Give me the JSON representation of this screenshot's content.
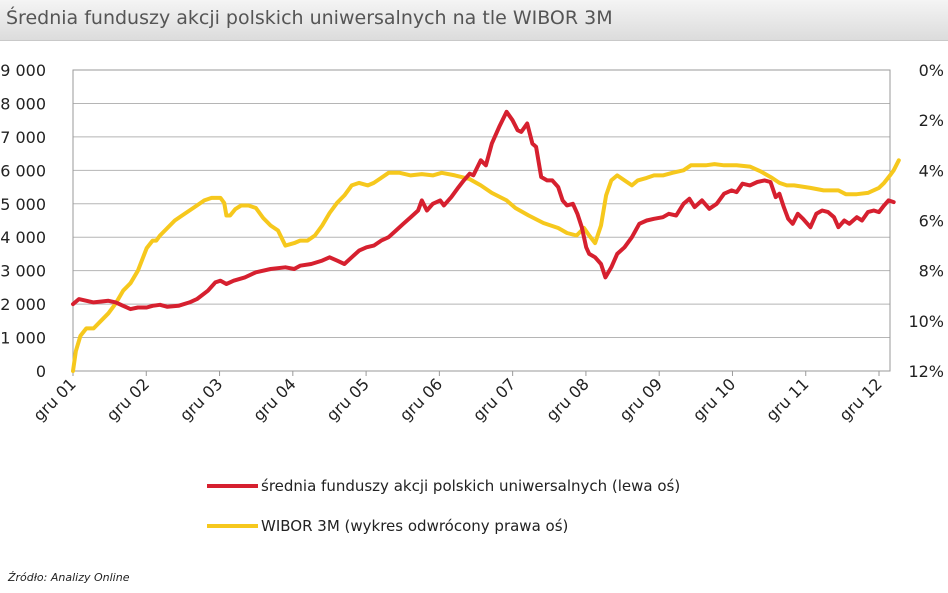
{
  "title": "Średnia funduszy akcji polskich uniwersalnych na tle WIBOR 3M",
  "source": "Źródło: Analizy Online",
  "chart_data": {
    "type": "line",
    "title": "Średnia funduszy akcji polskich uniwersalnych na tle WIBOR 3M",
    "x_labels": [
      "gru 01",
      "gru 02",
      "gru 03",
      "gru 04",
      "gru 05",
      "gru 06",
      "gru 07",
      "gru 08",
      "gru 09",
      "gru 10",
      "gru 11",
      "gru 12"
    ],
    "x_range": [
      2001.92,
      2013.0
    ],
    "left_axis": {
      "ylim": [
        0,
        9000
      ],
      "ticks": [
        0,
        1000,
        2000,
        3000,
        4000,
        5000,
        6000,
        7000,
        8000,
        9000
      ],
      "tick_labels": [
        "0",
        "1 000",
        "2 000",
        "3 000",
        "4 000",
        "5 000",
        "6 000",
        "7 000",
        "8 000",
        "9 000"
      ]
    },
    "right_axis": {
      "ylim": [
        0,
        12
      ],
      "inverted": true,
      "ticks": [
        0,
        2,
        4,
        6,
        8,
        10,
        12
      ],
      "tick_labels": [
        "0%",
        "2%",
        "4%",
        "6%",
        "8%",
        "10%",
        "12%"
      ]
    },
    "grid": true,
    "legend_position": "bottom",
    "series": [
      {
        "name": "średnia funduszy akcji polskich uniwersalnych (lewa oś)",
        "axis": "left",
        "color": "#d6202f",
        "points": [
          [
            2001.92,
            2000
          ],
          [
            2002.0,
            2150
          ],
          [
            2002.2,
            2050
          ],
          [
            2002.4,
            2100
          ],
          [
            2002.5,
            2050
          ],
          [
            2002.6,
            1950
          ],
          [
            2002.7,
            1850
          ],
          [
            2002.8,
            1900
          ],
          [
            2002.92,
            1900
          ],
          [
            2003.0,
            1950
          ],
          [
            2003.1,
            1980
          ],
          [
            2003.2,
            1920
          ],
          [
            2003.35,
            1950
          ],
          [
            2003.5,
            2050
          ],
          [
            2003.6,
            2150
          ],
          [
            2003.75,
            2400
          ],
          [
            2003.85,
            2650
          ],
          [
            2003.92,
            2700
          ],
          [
            2004.0,
            2600
          ],
          [
            2004.1,
            2700
          ],
          [
            2004.25,
            2800
          ],
          [
            2004.4,
            2950
          ],
          [
            2004.6,
            3050
          ],
          [
            2004.8,
            3100
          ],
          [
            2004.92,
            3050
          ],
          [
            2005.0,
            3150
          ],
          [
            2005.15,
            3200
          ],
          [
            2005.3,
            3300
          ],
          [
            2005.4,
            3400
          ],
          [
            2005.5,
            3300
          ],
          [
            2005.6,
            3200
          ],
          [
            2005.7,
            3400
          ],
          [
            2005.8,
            3600
          ],
          [
            2005.9,
            3700
          ],
          [
            2006.0,
            3750
          ],
          [
            2006.1,
            3900
          ],
          [
            2006.2,
            4000
          ],
          [
            2006.3,
            4200
          ],
          [
            2006.4,
            4400
          ],
          [
            2006.5,
            4600
          ],
          [
            2006.6,
            4800
          ],
          [
            2006.65,
            5100
          ],
          [
            2006.72,
            4800
          ],
          [
            2006.8,
            5000
          ],
          [
            2006.9,
            5100
          ],
          [
            2006.95,
            4950
          ],
          [
            2007.05,
            5200
          ],
          [
            2007.15,
            5500
          ],
          [
            2007.22,
            5700
          ],
          [
            2007.3,
            5900
          ],
          [
            2007.35,
            5850
          ],
          [
            2007.45,
            6300
          ],
          [
            2007.52,
            6150
          ],
          [
            2007.6,
            6800
          ],
          [
            2007.7,
            7300
          ],
          [
            2007.8,
            7750
          ],
          [
            2007.88,
            7500
          ],
          [
            2007.95,
            7200
          ],
          [
            2008.0,
            7150
          ],
          [
            2008.08,
            7400
          ],
          [
            2008.15,
            6800
          ],
          [
            2008.2,
            6700
          ],
          [
            2008.27,
            5800
          ],
          [
            2008.35,
            5700
          ],
          [
            2008.42,
            5700
          ],
          [
            2008.5,
            5500
          ],
          [
            2008.56,
            5100
          ],
          [
            2008.62,
            4950
          ],
          [
            2008.7,
            5000
          ],
          [
            2008.76,
            4700
          ],
          [
            2008.82,
            4300
          ],
          [
            2008.88,
            3700
          ],
          [
            2008.92,
            3500
          ],
          [
            2009.0,
            3400
          ],
          [
            2009.08,
            3200
          ],
          [
            2009.14,
            2800
          ],
          [
            2009.22,
            3100
          ],
          [
            2009.3,
            3500
          ],
          [
            2009.4,
            3700
          ],
          [
            2009.5,
            4000
          ],
          [
            2009.6,
            4400
          ],
          [
            2009.7,
            4500
          ],
          [
            2009.8,
            4550
          ],
          [
            2009.92,
            4600
          ],
          [
            2010.0,
            4700
          ],
          [
            2010.1,
            4650
          ],
          [
            2010.2,
            5000
          ],
          [
            2010.28,
            5150
          ],
          [
            2010.35,
            4900
          ],
          [
            2010.45,
            5100
          ],
          [
            2010.55,
            4850
          ],
          [
            2010.65,
            5000
          ],
          [
            2010.75,
            5300
          ],
          [
            2010.85,
            5400
          ],
          [
            2010.92,
            5350
          ],
          [
            2011.0,
            5600
          ],
          [
            2011.1,
            5550
          ],
          [
            2011.2,
            5650
          ],
          [
            2011.3,
            5700
          ],
          [
            2011.38,
            5650
          ],
          [
            2011.45,
            5200
          ],
          [
            2011.5,
            5300
          ],
          [
            2011.56,
            4900
          ],
          [
            2011.62,
            4550
          ],
          [
            2011.68,
            4400
          ],
          [
            2011.75,
            4700
          ],
          [
            2011.82,
            4550
          ],
          [
            2011.92,
            4300
          ],
          [
            2012.0,
            4700
          ],
          [
            2012.08,
            4800
          ],
          [
            2012.16,
            4750
          ],
          [
            2012.24,
            4600
          ],
          [
            2012.3,
            4300
          ],
          [
            2012.38,
            4500
          ],
          [
            2012.45,
            4400
          ],
          [
            2012.55,
            4600
          ],
          [
            2012.62,
            4500
          ],
          [
            2012.7,
            4750
          ],
          [
            2012.78,
            4800
          ],
          [
            2012.85,
            4750
          ],
          [
            2012.92,
            4950
          ],
          [
            2012.98,
            5100
          ],
          [
            2013.05,
            5050
          ]
        ]
      },
      {
        "name": "WIBOR 3M (wykres odwrócony  prawa oś)",
        "axis": "right",
        "color": "#f6c81d",
        "points": [
          [
            2001.92,
            12.0
          ],
          [
            2001.96,
            11.2
          ],
          [
            2002.02,
            10.6
          ],
          [
            2002.1,
            10.3
          ],
          [
            2002.2,
            10.3
          ],
          [
            2002.3,
            10.0
          ],
          [
            2002.4,
            9.7
          ],
          [
            2002.5,
            9.3
          ],
          [
            2002.6,
            8.8
          ],
          [
            2002.7,
            8.5
          ],
          [
            2002.8,
            8.0
          ],
          [
            2002.92,
            7.1
          ],
          [
            2003.0,
            6.8
          ],
          [
            2003.05,
            6.8
          ],
          [
            2003.1,
            6.6
          ],
          [
            2003.2,
            6.3
          ],
          [
            2003.3,
            6.0
          ],
          [
            2003.4,
            5.8
          ],
          [
            2003.5,
            5.6
          ],
          [
            2003.6,
            5.4
          ],
          [
            2003.7,
            5.2
          ],
          [
            2003.8,
            5.1
          ],
          [
            2003.92,
            5.1
          ],
          [
            2003.97,
            5.3
          ],
          [
            2004.0,
            5.8
          ],
          [
            2004.05,
            5.8
          ],
          [
            2004.12,
            5.55
          ],
          [
            2004.2,
            5.4
          ],
          [
            2004.3,
            5.4
          ],
          [
            2004.4,
            5.5
          ],
          [
            2004.5,
            5.9
          ],
          [
            2004.6,
            6.2
          ],
          [
            2004.7,
            6.4
          ],
          [
            2004.8,
            7.0
          ],
          [
            2004.92,
            6.9
          ],
          [
            2005.0,
            6.8
          ],
          [
            2005.1,
            6.8
          ],
          [
            2005.2,
            6.6
          ],
          [
            2005.3,
            6.2
          ],
          [
            2005.4,
            5.7
          ],
          [
            2005.5,
            5.3
          ],
          [
            2005.6,
            5.0
          ],
          [
            2005.7,
            4.6
          ],
          [
            2005.8,
            4.5
          ],
          [
            2005.92,
            4.6
          ],
          [
            2006.0,
            4.5
          ],
          [
            2006.1,
            4.3
          ],
          [
            2006.2,
            4.1
          ],
          [
            2006.35,
            4.1
          ],
          [
            2006.5,
            4.2
          ],
          [
            2006.65,
            4.15
          ],
          [
            2006.8,
            4.2
          ],
          [
            2006.92,
            4.1
          ],
          [
            2007.1,
            4.2
          ],
          [
            2007.3,
            4.35
          ],
          [
            2007.45,
            4.6
          ],
          [
            2007.6,
            4.9
          ],
          [
            2007.8,
            5.2
          ],
          [
            2007.92,
            5.5
          ],
          [
            2008.1,
            5.8
          ],
          [
            2008.3,
            6.1
          ],
          [
            2008.5,
            6.3
          ],
          [
            2008.62,
            6.5
          ],
          [
            2008.75,
            6.6
          ],
          [
            2008.85,
            6.3
          ],
          [
            2008.92,
            6.6
          ],
          [
            2009.0,
            6.9
          ],
          [
            2009.08,
            6.2
          ],
          [
            2009.15,
            5.0
          ],
          [
            2009.22,
            4.4
          ],
          [
            2009.3,
            4.2
          ],
          [
            2009.4,
            4.4
          ],
          [
            2009.5,
            4.6
          ],
          [
            2009.58,
            4.4
          ],
          [
            2009.7,
            4.3
          ],
          [
            2009.8,
            4.2
          ],
          [
            2009.92,
            4.2
          ],
          [
            2010.05,
            4.1
          ],
          [
            2010.2,
            4.0
          ],
          [
            2010.3,
            3.8
          ],
          [
            2010.5,
            3.8
          ],
          [
            2010.62,
            3.75
          ],
          [
            2010.75,
            3.8
          ],
          [
            2010.92,
            3.8
          ],
          [
            2011.1,
            3.85
          ],
          [
            2011.25,
            4.05
          ],
          [
            2011.4,
            4.3
          ],
          [
            2011.5,
            4.5
          ],
          [
            2011.6,
            4.6
          ],
          [
            2011.7,
            4.6
          ],
          [
            2011.92,
            4.7
          ],
          [
            2012.1,
            4.8
          ],
          [
            2012.2,
            4.8
          ],
          [
            2012.3,
            4.8
          ],
          [
            2012.4,
            4.95
          ],
          [
            2012.55,
            4.95
          ],
          [
            2012.7,
            4.9
          ],
          [
            2012.85,
            4.7
          ],
          [
            2012.92,
            4.5
          ],
          [
            2013.0,
            4.2
          ],
          [
            2013.05,
            4.0
          ],
          [
            2013.12,
            3.6
          ]
        ]
      }
    ]
  }
}
